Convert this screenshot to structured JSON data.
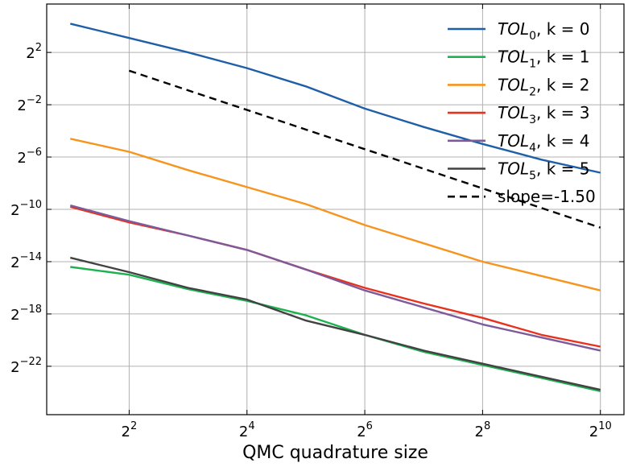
{
  "chart_data": {
    "type": "line",
    "title": "",
    "xlabel": "QMC quadrature size",
    "ylabel": "",
    "x_scale": "log2",
    "y_scale": "log2",
    "xlim_log2": [
      0.6,
      10.4
    ],
    "ylim_log2": [
      -25.7,
      5.7
    ],
    "x_ticks": [
      {
        "base": "2",
        "exp": "2",
        "value_log2": 2
      },
      {
        "base": "2",
        "exp": "4",
        "value_log2": 4
      },
      {
        "base": "2",
        "exp": "6",
        "value_log2": 6
      },
      {
        "base": "2",
        "exp": "8",
        "value_log2": 8
      },
      {
        "base": "2",
        "exp": "10",
        "value_log2": 10
      }
    ],
    "y_ticks": [
      {
        "base": "2",
        "exp": "2",
        "value_log2": 2
      },
      {
        "base": "2",
        "exp": "−2",
        "value_log2": -2
      },
      {
        "base": "2",
        "exp": "−6",
        "value_log2": -6
      },
      {
        "base": "2",
        "exp": "−10",
        "value_log2": -10
      },
      {
        "base": "2",
        "exp": "−14",
        "value_log2": -14
      },
      {
        "base": "2",
        "exp": "−18",
        "value_log2": -18
      },
      {
        "base": "2",
        "exp": "−22",
        "value_log2": -22
      }
    ],
    "grid": true,
    "legend_position": "top-right",
    "x_log2": [
      1,
      2,
      3,
      4,
      5,
      6,
      7,
      8,
      9,
      10
    ],
    "series": [
      {
        "name": "TOL",
        "subscript": "0",
        "suffix": ", k = 0",
        "color": "#1f5fa8",
        "dash": "",
        "values_log2": [
          4.2,
          3.1,
          2.0,
          0.8,
          -0.6,
          -2.3,
          -3.7,
          -5.0,
          -6.2,
          -7.2
        ]
      },
      {
        "name": "TOL",
        "subscript": "1",
        "suffix": ", k = 1",
        "color": "#1db150",
        "dash": "",
        "values_log2": [
          -14.4,
          -15.0,
          -16.1,
          -17.0,
          -18.1,
          -19.6,
          -20.9,
          -21.9,
          -22.9,
          -23.9
        ]
      },
      {
        "name": "TOL",
        "subscript": "2",
        "suffix": ", k = 2",
        "color": "#f7941d",
        "dash": "",
        "values_log2": [
          -4.6,
          -5.6,
          -7.0,
          -8.3,
          -9.6,
          -11.2,
          -12.6,
          -14.0,
          -15.1,
          -16.2
        ]
      },
      {
        "name": "TOL",
        "subscript": "3",
        "suffix": ", k = 3",
        "color": "#e8321e",
        "dash": "",
        "values_log2": [
          -9.8,
          -11.0,
          -12.0,
          -13.1,
          -14.6,
          -16.0,
          -17.2,
          -18.3,
          -19.6,
          -20.5
        ]
      },
      {
        "name": "TOL",
        "subscript": "4",
        "suffix": ", k = 4",
        "color": "#7e5a9b",
        "dash": "",
        "values_log2": [
          -9.7,
          -10.9,
          -12.0,
          -13.1,
          -14.6,
          -16.2,
          -17.5,
          -18.8,
          -19.8,
          -20.8
        ]
      },
      {
        "name": "TOL",
        "subscript": "5",
        "suffix": ", k = 5",
        "color": "#424242",
        "dash": "",
        "values_log2": [
          -13.7,
          -14.8,
          -16.0,
          -16.9,
          -18.5,
          -19.6,
          -20.8,
          -21.8,
          -22.8,
          -23.8
        ]
      },
      {
        "name": "slope=-1.50",
        "subscript": "",
        "suffix": "",
        "color": "#000000",
        "dash": "9,6",
        "x_log2": [
          2,
          10
        ],
        "values_log2": [
          0.6,
          -11.4
        ]
      }
    ]
  }
}
